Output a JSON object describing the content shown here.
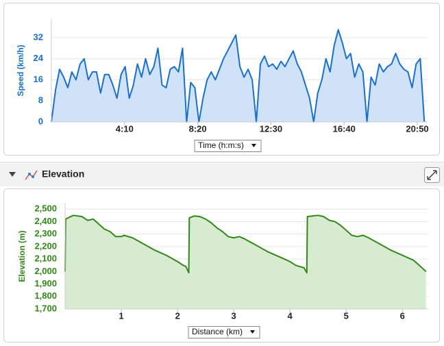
{
  "chart_data": [
    {
      "type": "area",
      "y_label": "Speed (km/h)",
      "x_label": "Time (h:m:s)",
      "color": "#1570d6",
      "grid": true,
      "xlim": [
        0,
        1285
      ],
      "ylim": [
        0,
        39
      ],
      "xticks": [
        {
          "value": 250,
          "label": "4:10"
        },
        {
          "value": 500,
          "label": "8:20"
        },
        {
          "value": 750,
          "label": "12:30"
        },
        {
          "value": 1000,
          "label": "16:40"
        },
        {
          "value": 1250,
          "label": "20:50"
        }
      ],
      "yticks": [
        0,
        8,
        16,
        24,
        32
      ],
      "x": [
        0,
        14,
        28,
        42,
        56,
        70,
        84,
        98,
        112,
        126,
        140,
        154,
        168,
        182,
        196,
        210,
        224,
        238,
        252,
        266,
        280,
        294,
        308,
        322,
        336,
        350,
        364,
        378,
        392,
        406,
        420,
        434,
        448,
        462,
        476,
        490,
        504,
        518,
        532,
        546,
        560,
        574,
        588,
        602,
        616,
        630,
        644,
        658,
        672,
        686,
        700,
        714,
        728,
        742,
        756,
        770,
        784,
        798,
        812,
        826,
        840,
        854,
        868,
        882,
        896,
        910,
        924,
        938,
        952,
        966,
        980,
        994,
        1008,
        1022,
        1036,
        1050,
        1064,
        1078,
        1092,
        1106,
        1120,
        1134,
        1148,
        1162,
        1176,
        1190,
        1204,
        1218,
        1232,
        1246,
        1260,
        1274
      ],
      "values": [
        0,
        12,
        20,
        17,
        13,
        19,
        16,
        22,
        24,
        16,
        19,
        19,
        11,
        18,
        18,
        14,
        9,
        18,
        21,
        9,
        14,
        22,
        17,
        24,
        18,
        21,
        28,
        14,
        13,
        20,
        21,
        19,
        28,
        0,
        15,
        13,
        0,
        9,
        16,
        19,
        16,
        20,
        24,
        27,
        30,
        33,
        21,
        17,
        20,
        16,
        0,
        22,
        25,
        21,
        22,
        20,
        23,
        21,
        24,
        27,
        22,
        19,
        14,
        9,
        0,
        11,
        16,
        24,
        19,
        29,
        35,
        30,
        24,
        26,
        17,
        22,
        19,
        0,
        17,
        14,
        22,
        19,
        21,
        22,
        26,
        22,
        20,
        19,
        13,
        22,
        24,
        0
      ]
    },
    {
      "type": "area",
      "title": "Elevation",
      "y_label": "Elevation (m)",
      "x_label": "Distance (km)",
      "color": "#2e8a14",
      "grid": true,
      "xlim": [
        0,
        6.46
      ],
      "ylim": [
        1700,
        2545
      ],
      "xticks": [
        1,
        2,
        3,
        4,
        5,
        6
      ],
      "yticks": [
        {
          "value": 1700,
          "label": "1,700"
        },
        {
          "value": 1800,
          "label": "1,800"
        },
        {
          "value": 1900,
          "label": "1,900"
        },
        {
          "value": 2000,
          "label": "2,000"
        },
        {
          "value": 2100,
          "label": "2,100"
        },
        {
          "value": 2200,
          "label": "2,200"
        },
        {
          "value": 2300,
          "label": "2,300"
        },
        {
          "value": 2400,
          "label": "2,400"
        },
        {
          "value": 2500,
          "label": "2,500"
        }
      ],
      "x": [
        0,
        0.01,
        0.1,
        0.15,
        0.3,
        0.4,
        0.5,
        0.6,
        0.7,
        0.8,
        0.9,
        1.0,
        1.05,
        1.2,
        1.4,
        1.6,
        1.8,
        2.0,
        2.1,
        2.15,
        2.2,
        2.21,
        2.3,
        2.4,
        2.5,
        2.6,
        2.7,
        2.8,
        2.9,
        3.0,
        3.1,
        3.2,
        3.4,
        3.6,
        3.8,
        4.0,
        4.1,
        4.25,
        4.3,
        4.31,
        4.4,
        4.5,
        4.6,
        4.7,
        4.8,
        4.9,
        5.0,
        5.1,
        5.2,
        5.3,
        5.4,
        5.6,
        5.8,
        6.0,
        6.2,
        6.3,
        6.42
      ],
      "values": [
        2000,
        2420,
        2440,
        2450,
        2440,
        2410,
        2420,
        2380,
        2340,
        2320,
        2280,
        2280,
        2290,
        2270,
        2220,
        2170,
        2130,
        2080,
        2050,
        2040,
        1990,
        2430,
        2445,
        2440,
        2420,
        2390,
        2350,
        2320,
        2280,
        2270,
        2280,
        2260,
        2210,
        2160,
        2120,
        2080,
        2050,
        2030,
        1990,
        2440,
        2445,
        2450,
        2440,
        2410,
        2400,
        2370,
        2330,
        2290,
        2280,
        2290,
        2270,
        2220,
        2170,
        2130,
        2090,
        2050,
        2000
      ]
    }
  ]
}
